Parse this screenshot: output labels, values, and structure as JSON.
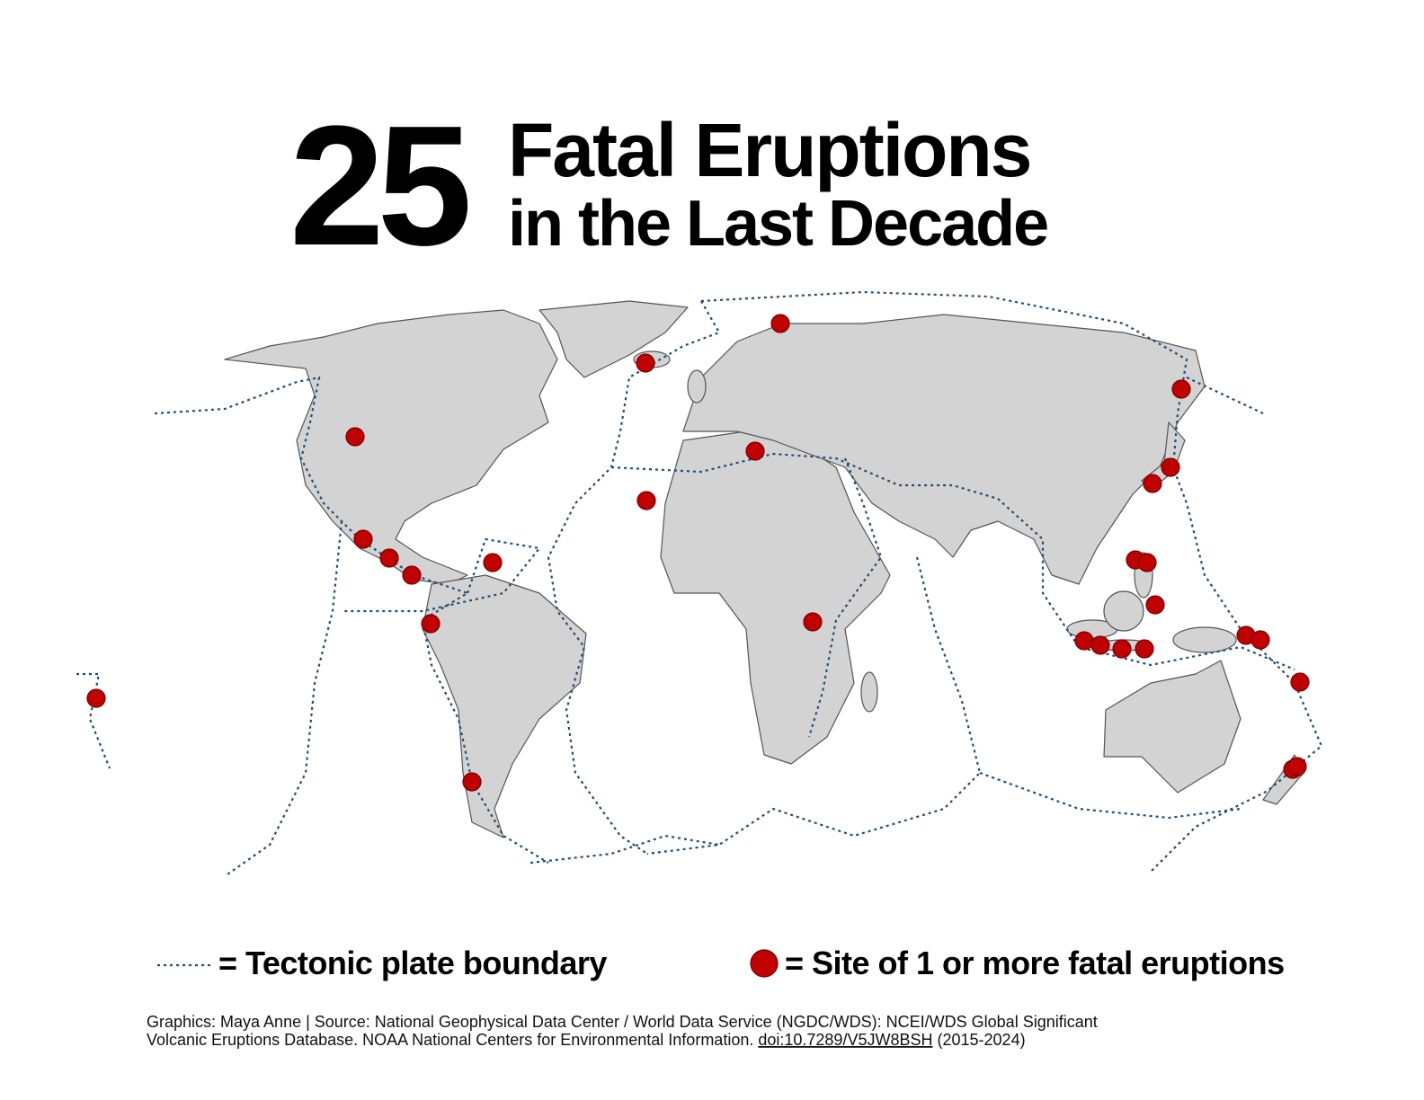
{
  "title": {
    "number": "25",
    "line1": "Fatal Eruptions",
    "line2": "in the Last Decade"
  },
  "legend": {
    "plate_boundary": "= Tectonic plate boundary",
    "eruption_site": "= Site of 1 or more fatal eruptions"
  },
  "source": {
    "line1": "Graphics: Maya Anne | Source: National Geophysical Data Center / World Data Service (NGDC/WDS): NCEI/WDS Global Significant",
    "line2": "Volcanic Eruptions Database. NOAA National Centers for Environmental Information.",
    "doi": "doi:10.7289/V5JW8BSH",
    "years": "(2015-2024)"
  }
}
